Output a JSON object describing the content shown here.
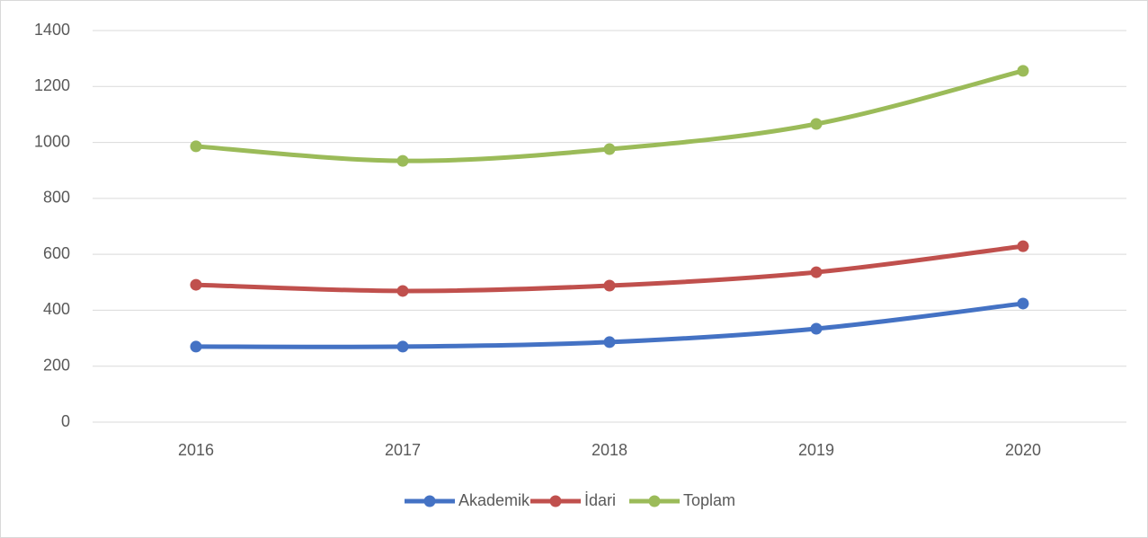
{
  "chart_data": {
    "type": "line",
    "categories": [
      "2016",
      "2017",
      "2018",
      "2019",
      "2020"
    ],
    "series": [
      {
        "name": "Akademik",
        "color": "#4472c4",
        "values": [
          270,
          270,
          286,
          334,
          424
        ]
      },
      {
        "name": "İdari",
        "color": "#c0504d",
        "values": [
          491,
          469,
          488,
          536,
          629
        ]
      },
      {
        "name": "Toplam",
        "color": "#9bbb59",
        "values": [
          986,
          934,
          976,
          1066,
          1256
        ]
      }
    ],
    "ylim": [
      0,
      1400
    ],
    "yticks": [
      0,
      200,
      400,
      600,
      800,
      1000,
      1200,
      1400
    ],
    "grid": true,
    "legend": "bottom"
  }
}
